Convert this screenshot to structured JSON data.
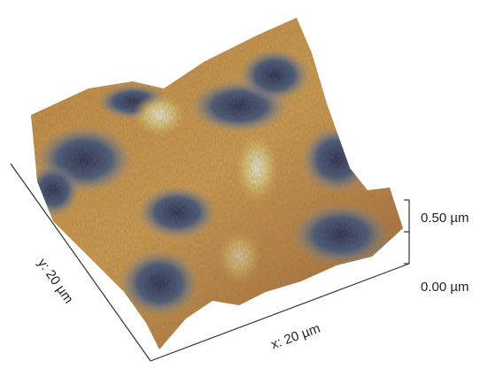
{
  "axes": {
    "y_label": "y: 20 µm",
    "x_label": "x: 20 µm",
    "z_ticks": [
      "0.50 µm",
      "0.00 µm"
    ]
  }
}
